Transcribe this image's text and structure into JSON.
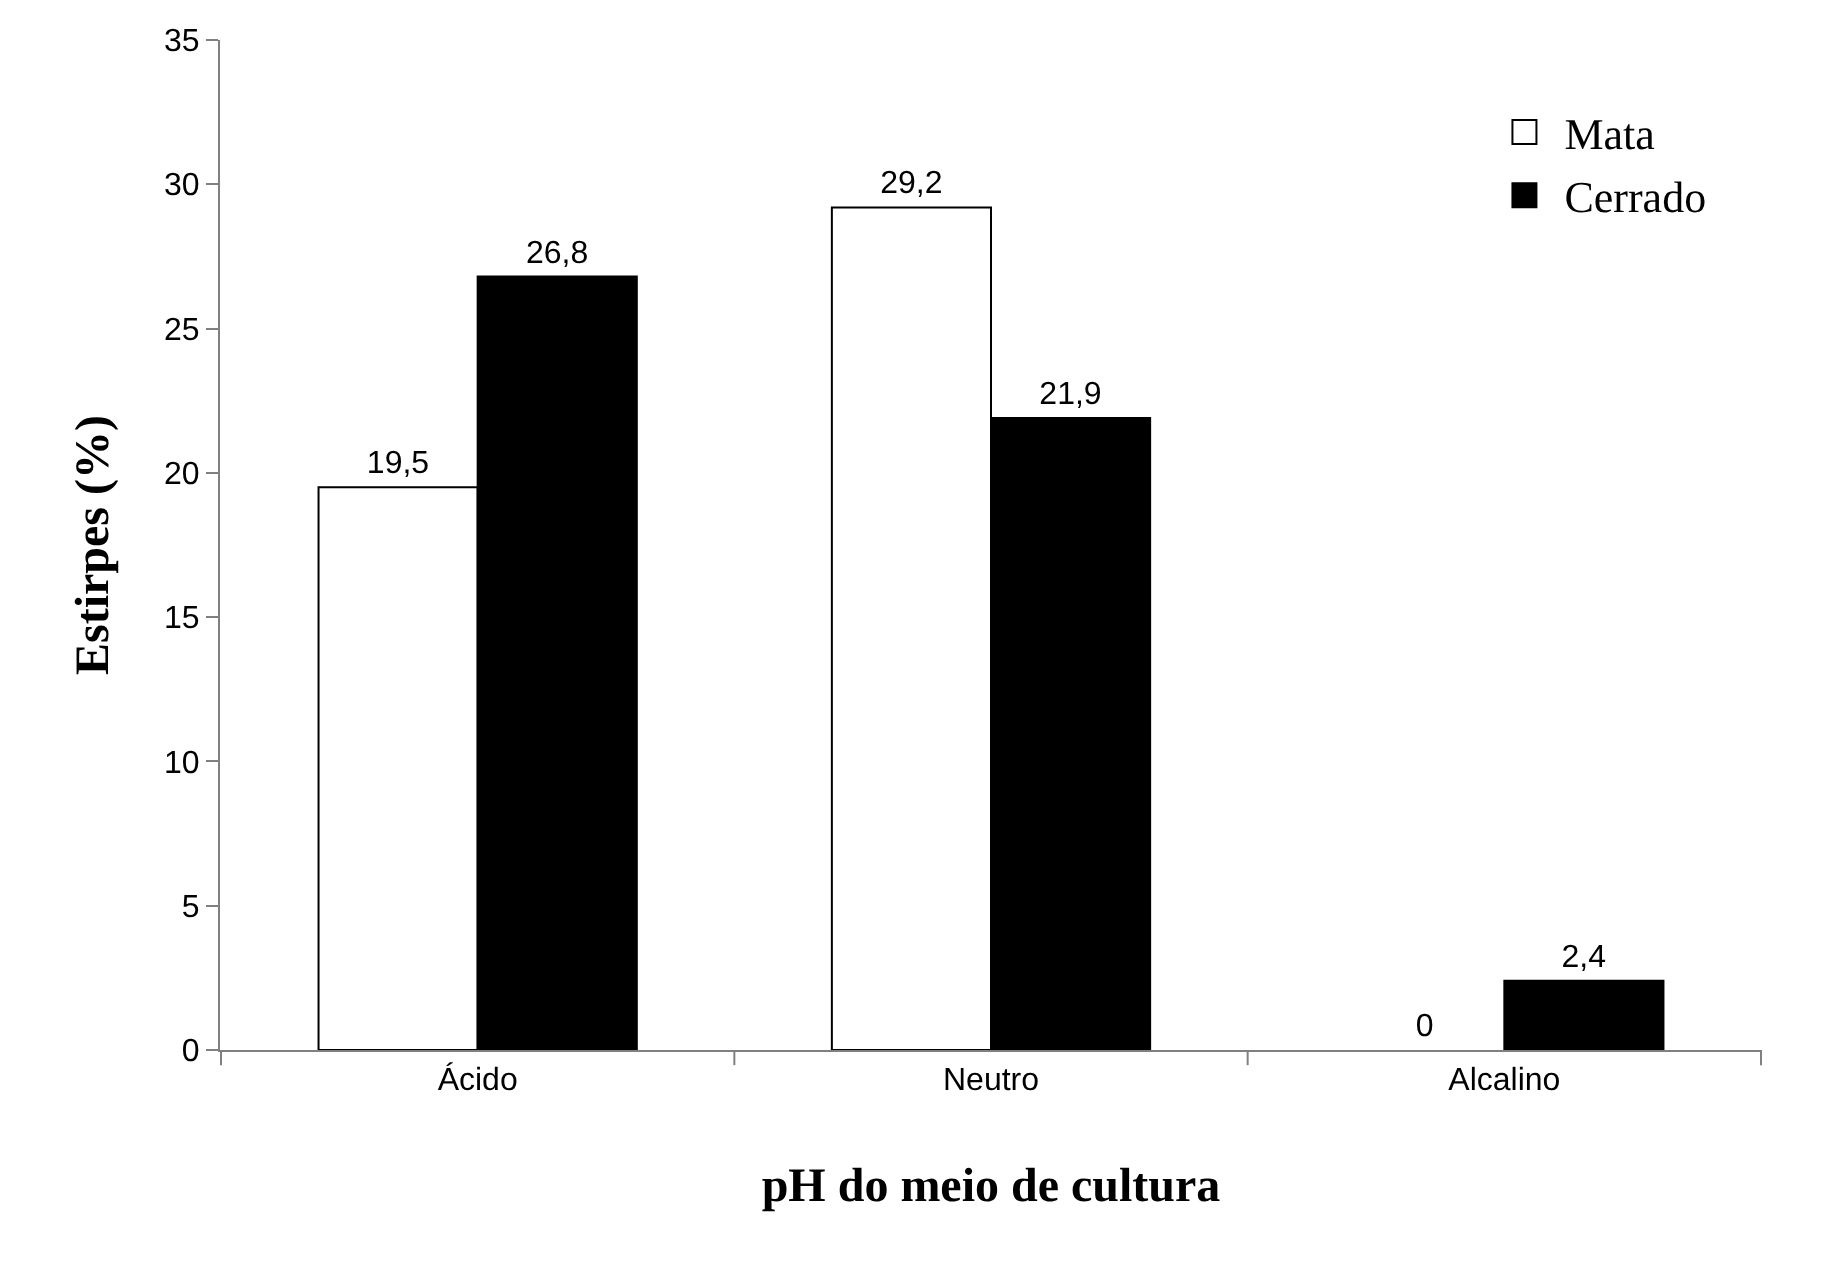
{
  "chart_data": {
    "type": "bar",
    "xlabel": "pH do meio de cultura",
    "ylabel": "Estirpes (%)",
    "categories": [
      "Ácido",
      "Neutro",
      "Alcalino"
    ],
    "series": [
      {
        "name": "Mata",
        "color": "#ffffff",
        "values": [
          19.5,
          29.2,
          0
        ],
        "value_labels": [
          "19,5",
          "29,2",
          "0"
        ]
      },
      {
        "name": "Cerrado",
        "color": "#000000",
        "values": [
          26.8,
          21.9,
          2.4
        ],
        "value_labels": [
          "26,8",
          "21,9",
          "2,4"
        ]
      }
    ],
    "ylim": [
      0,
      35
    ],
    "yticks": [
      0,
      5,
      10,
      15,
      20,
      25,
      30,
      35
    ],
    "legend": "top right"
  }
}
